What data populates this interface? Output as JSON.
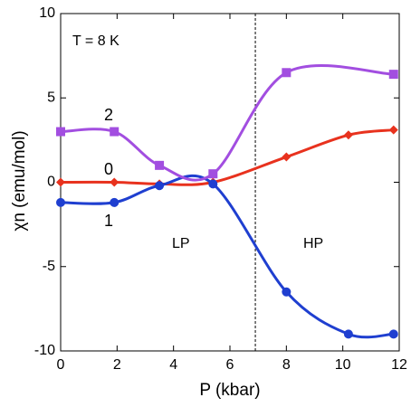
{
  "chart_data": {
    "type": "line",
    "annotations": [
      "T = 8 K",
      "LP",
      "HP"
    ],
    "x_label": "P (kbar)",
    "y_label": "χn (emu/mol)",
    "x": [
      0,
      1.9,
      3.5,
      5.4,
      8,
      10.2,
      11.8
    ],
    "series": [
      {
        "name": "0",
        "color": "#e8321e",
        "marker": "diamond",
        "values": [
          0,
          0,
          -0.1,
          0,
          1.5,
          2.8,
          3.1
        ]
      },
      {
        "name": "1",
        "color": "#1f3fd0",
        "marker": "circle",
        "values": [
          -1.2,
          -1.2,
          -0.2,
          -0.1,
          -6.5,
          -9.0,
          -9.0
        ]
      },
      {
        "name": "2",
        "color": "#a24ee0",
        "marker": "square",
        "values": [
          3.0,
          3.0,
          1.0,
          0.5,
          6.5,
          null,
          6.4
        ]
      }
    ],
    "vline": 6.9,
    "xlim": [
      0,
      12
    ],
    "xticks": [
      0,
      2,
      4,
      6,
      8,
      10,
      12
    ],
    "ylim": [
      -10,
      10
    ],
    "yticks": [
      -10,
      -5,
      0,
      5,
      10
    ]
  }
}
